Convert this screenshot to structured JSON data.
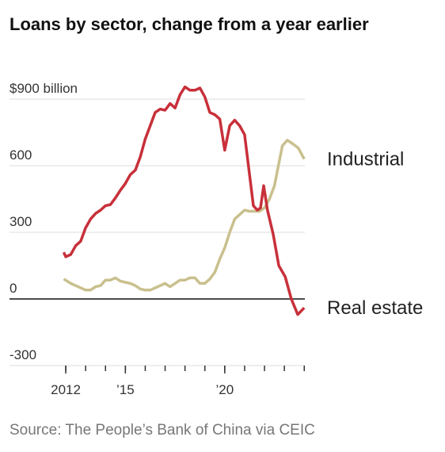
{
  "chart_data": {
    "type": "line",
    "title": "Loans by sector, change from a year earlier",
    "source": "Source: The People’s Bank of China via CEIC",
    "xlim": [
      2009.17,
      2024.03
    ],
    "ylim": [
      -300,
      900
    ],
    "yticks": [
      {
        "value": 900,
        "label": "$900 billion"
      },
      600,
      300,
      0,
      -300
    ],
    "xticks": [
      {
        "value": 2012,
        "label": "2012"
      },
      {
        "value": 2015,
        "label": "’15"
      },
      {
        "value": 2020,
        "label": "’20"
      }
    ],
    "xminorticks": [
      2012,
      2013,
      2014,
      2015,
      2016,
      2017,
      2018,
      2019,
      2020,
      2021,
      2022,
      2023,
      2024
    ],
    "grid": true,
    "series": [
      {
        "name": "Industrial",
        "color": "#c9c08e",
        "x": [
          2011.9,
          2012.25,
          2012.5,
          2012.75,
          2013.0,
          2013.25,
          2013.5,
          2013.75,
          2014.0,
          2014.25,
          2014.5,
          2014.75,
          2015.0,
          2015.25,
          2015.5,
          2015.75,
          2016.0,
          2016.25,
          2016.5,
          2016.75,
          2017.0,
          2017.25,
          2017.5,
          2017.75,
          2018.0,
          2018.25,
          2018.5,
          2018.75,
          2019.0,
          2019.25,
          2019.5,
          2019.75,
          2020.0,
          2020.25,
          2020.5,
          2020.75,
          2021.0,
          2021.25,
          2021.5,
          2021.75,
          2022.0,
          2022.25,
          2022.5,
          2022.9,
          2023.15,
          2023.4,
          2023.7,
          2024.0
        ],
        "values": [
          90,
          70,
          60,
          50,
          40,
          40,
          55,
          60,
          85,
          85,
          95,
          80,
          75,
          70,
          60,
          45,
          40,
          40,
          50,
          60,
          70,
          55,
          70,
          85,
          85,
          95,
          95,
          70,
          70,
          90,
          120,
          180,
          230,
          300,
          360,
          380,
          400,
          395,
          395,
          395,
          410,
          450,
          510,
          690,
          715,
          700,
          680,
          630
        ]
      },
      {
        "name": "Real estate",
        "color": "#c8303a",
        "x": [
          2011.9,
          2012.0,
          2012.25,
          2012.5,
          2012.75,
          2013.0,
          2013.25,
          2013.5,
          2013.75,
          2014.0,
          2014.25,
          2014.5,
          2014.75,
          2015.0,
          2015.25,
          2015.5,
          2015.75,
          2016.0,
          2016.25,
          2016.5,
          2016.75,
          2017.0,
          2017.25,
          2017.5,
          2017.75,
          2018.0,
          2018.25,
          2018.5,
          2018.75,
          2019.0,
          2019.25,
          2019.5,
          2019.75,
          2020.0,
          2020.25,
          2020.5,
          2020.75,
          2021.0,
          2021.44,
          2021.64,
          2021.8,
          2021.96,
          2022.15,
          2022.44,
          2022.72,
          2023.04,
          2023.35,
          2023.67,
          2024.0
        ],
        "values": [
          210,
          190,
          200,
          240,
          260,
          320,
          360,
          385,
          400,
          420,
          425,
          455,
          490,
          520,
          560,
          580,
          640,
          720,
          780,
          840,
          855,
          850,
          880,
          860,
          920,
          955,
          940,
          940,
          950,
          910,
          840,
          830,
          810,
          670,
          780,
          805,
          780,
          740,
          420,
          400,
          410,
          510,
          400,
          290,
          150,
          100,
          0,
          -70,
          -40
        ]
      }
    ]
  }
}
